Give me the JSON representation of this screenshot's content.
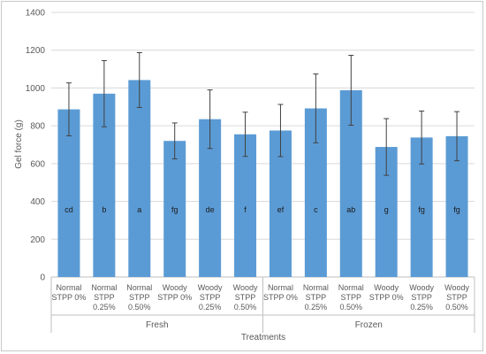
{
  "chart_data": {
    "type": "bar",
    "title": "",
    "xlabel": "Treatments",
    "ylabel": "Gel force (g)",
    "ylim": [
      0,
      1400
    ],
    "yticks": [
      0,
      200,
      400,
      600,
      800,
      1000,
      1200,
      1400
    ],
    "grid": true,
    "legend": "none",
    "bar_color": "#5b9bd5",
    "groups": [
      {
        "name": "Fresh",
        "count": 6
      },
      {
        "name": "Frozen",
        "count": 6
      }
    ],
    "categories": [
      [
        "Normal",
        "STPP 0%"
      ],
      [
        "Normal",
        "STPP",
        "0.25%"
      ],
      [
        "Normal",
        "STPP",
        "0.50%"
      ],
      [
        "Woody",
        "STPP 0%"
      ],
      [
        "Woody",
        "STPP",
        "0.25%"
      ],
      [
        "Woody",
        "STPP",
        "0.50%"
      ],
      [
        "Normal",
        "STPP 0%"
      ],
      [
        "Normal",
        "STPP",
        "0.25%"
      ],
      [
        "Normal",
        "STPP",
        "0.50%"
      ],
      [
        "Woody",
        "STPP 0%"
      ],
      [
        "Woody",
        "STPP",
        "0.25%"
      ],
      [
        "Woody",
        "STPP",
        "0.50%"
      ]
    ],
    "values": [
      887,
      970,
      1042,
      720,
      835,
      755,
      775,
      892,
      988,
      688,
      738,
      745
    ],
    "errors": [
      140,
      175,
      145,
      95,
      155,
      117,
      138,
      182,
      185,
      150,
      140,
      130
    ],
    "labels": [
      "cd",
      "b",
      "a",
      "fg",
      "de",
      "f",
      "ef",
      "c",
      "ab",
      "g",
      "fg",
      "fg"
    ]
  }
}
